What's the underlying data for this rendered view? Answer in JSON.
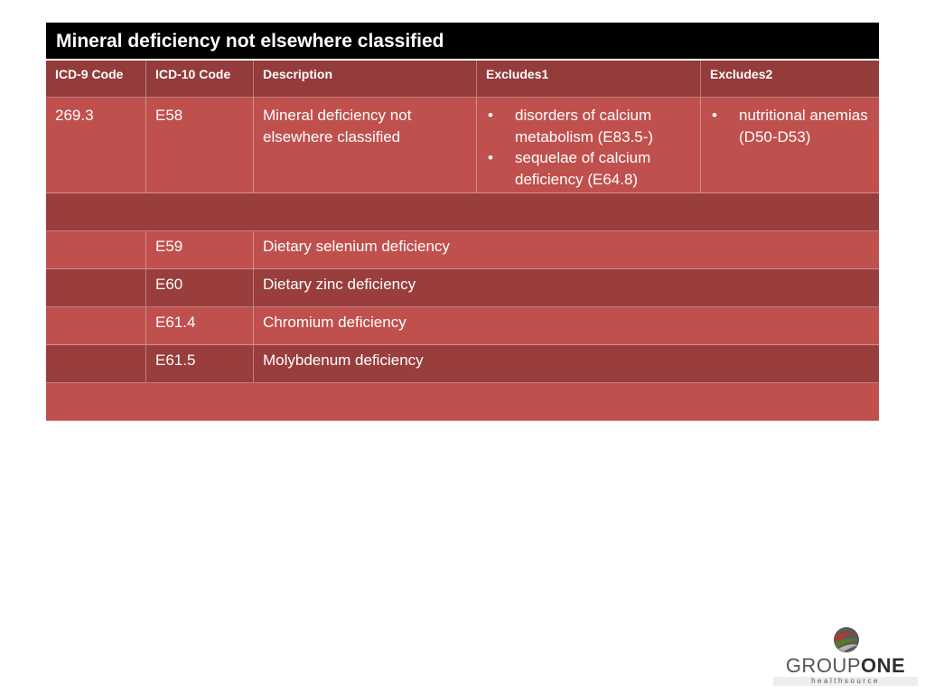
{
  "title": "Mineral deficiency not elsewhere classified",
  "headers": [
    "ICD-9 Code",
    "ICD-10 Code",
    "Description",
    "Excludes1",
    "Excludes2"
  ],
  "main_row": {
    "icd9": "269.3",
    "icd10": "E58",
    "description": "Mineral deficiency not elsewhere classified",
    "excludes1": [
      "disorders of calcium metabolism (E83.5-)",
      "sequelae of calcium deficiency (E64.8)"
    ],
    "excludes2": [
      "nutritional anemias (D50-D53)"
    ]
  },
  "rows": [
    {
      "icd10": "E59",
      "description": "Dietary selenium deficiency"
    },
    {
      "icd10": "E60",
      "description": "Dietary zinc deficiency"
    },
    {
      "icd10": "E61.4",
      "description": "Chromium deficiency"
    },
    {
      "icd10": "E61.5",
      "description": "Molybdenum deficiency"
    }
  ],
  "logo": {
    "word1": "GROUP",
    "word2": "ONE",
    "tagline": "healthsource",
    "colors": {
      "green": "#5a7a2a",
      "red": "#b03a2e",
      "gray": "#5a5a5a"
    }
  }
}
